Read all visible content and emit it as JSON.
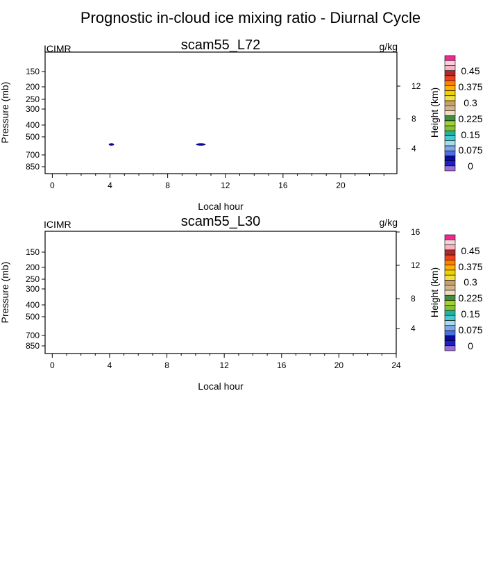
{
  "title": "Prognostic in-cloud ice mixing ratio - Diurnal Cycle",
  "colors": {
    "contour_fill": "#0a0a8c",
    "colorbar": [
      "#9a6fd6",
      "#1e1ec8",
      "#0a0aa0",
      "#4a6fe0",
      "#7fa6ea",
      "#a6dce8",
      "#48c8d0",
      "#1eb4a0",
      "#88c034",
      "#a0d032",
      "#3c9040",
      "#f0dcc0",
      "#d2b48c",
      "#c8a070",
      "#f0e040",
      "#f0d000",
      "#ffb000",
      "#ff8000",
      "#f04020",
      "#b02828",
      "#f8b4c0",
      "#f8d0dc",
      "#f02890"
    ]
  },
  "chart_data": [
    {
      "type": "contour",
      "title": "scam55_L72",
      "left_label": "ICIMR",
      "units": "g/kg",
      "xlabel": "Local hour",
      "ylabel": "Pressure (mb)",
      "ylabel_right": "Height (km)",
      "xlim": [
        -0.5,
        23.9
      ],
      "x_ticks": [
        "0",
        "4",
        "8",
        "12",
        "16",
        "20"
      ],
      "y_ticks": [
        "150",
        "200",
        "250",
        "300",
        "400",
        "500",
        "700",
        "850"
      ],
      "y_right_ticks": [
        "4",
        "8",
        "12"
      ],
      "colorbar_labels": [
        "0",
        "0.075",
        "0.15",
        "0.225",
        "0.3",
        "0.375",
        "0.45"
      ],
      "features": [
        {
          "hour": 4.1,
          "pressure": 600,
          "value": 0.0
        },
        {
          "hour": 10.3,
          "pressure": 600,
          "value": 0.0
        }
      ]
    },
    {
      "type": "contour",
      "title": "scam55_L30",
      "left_label": "ICIMR",
      "units": "g/kg",
      "xlabel": "Local hour",
      "ylabel": "Pressure (mb)",
      "ylabel_right": "Height (km)",
      "xlim": [
        -0.5,
        24
      ],
      "x_ticks": [
        "0",
        "4",
        "8",
        "12",
        "16",
        "20",
        "24"
      ],
      "y_ticks": [
        "150",
        "200",
        "250",
        "300",
        "400",
        "500",
        "700",
        "850"
      ],
      "y_right_ticks": [
        "4",
        "8",
        "12",
        "16"
      ],
      "colorbar_labels": [
        "0",
        "0.075",
        "0.15",
        "0.225",
        "0.3",
        "0.375",
        "0.45"
      ],
      "features": []
    }
  ]
}
